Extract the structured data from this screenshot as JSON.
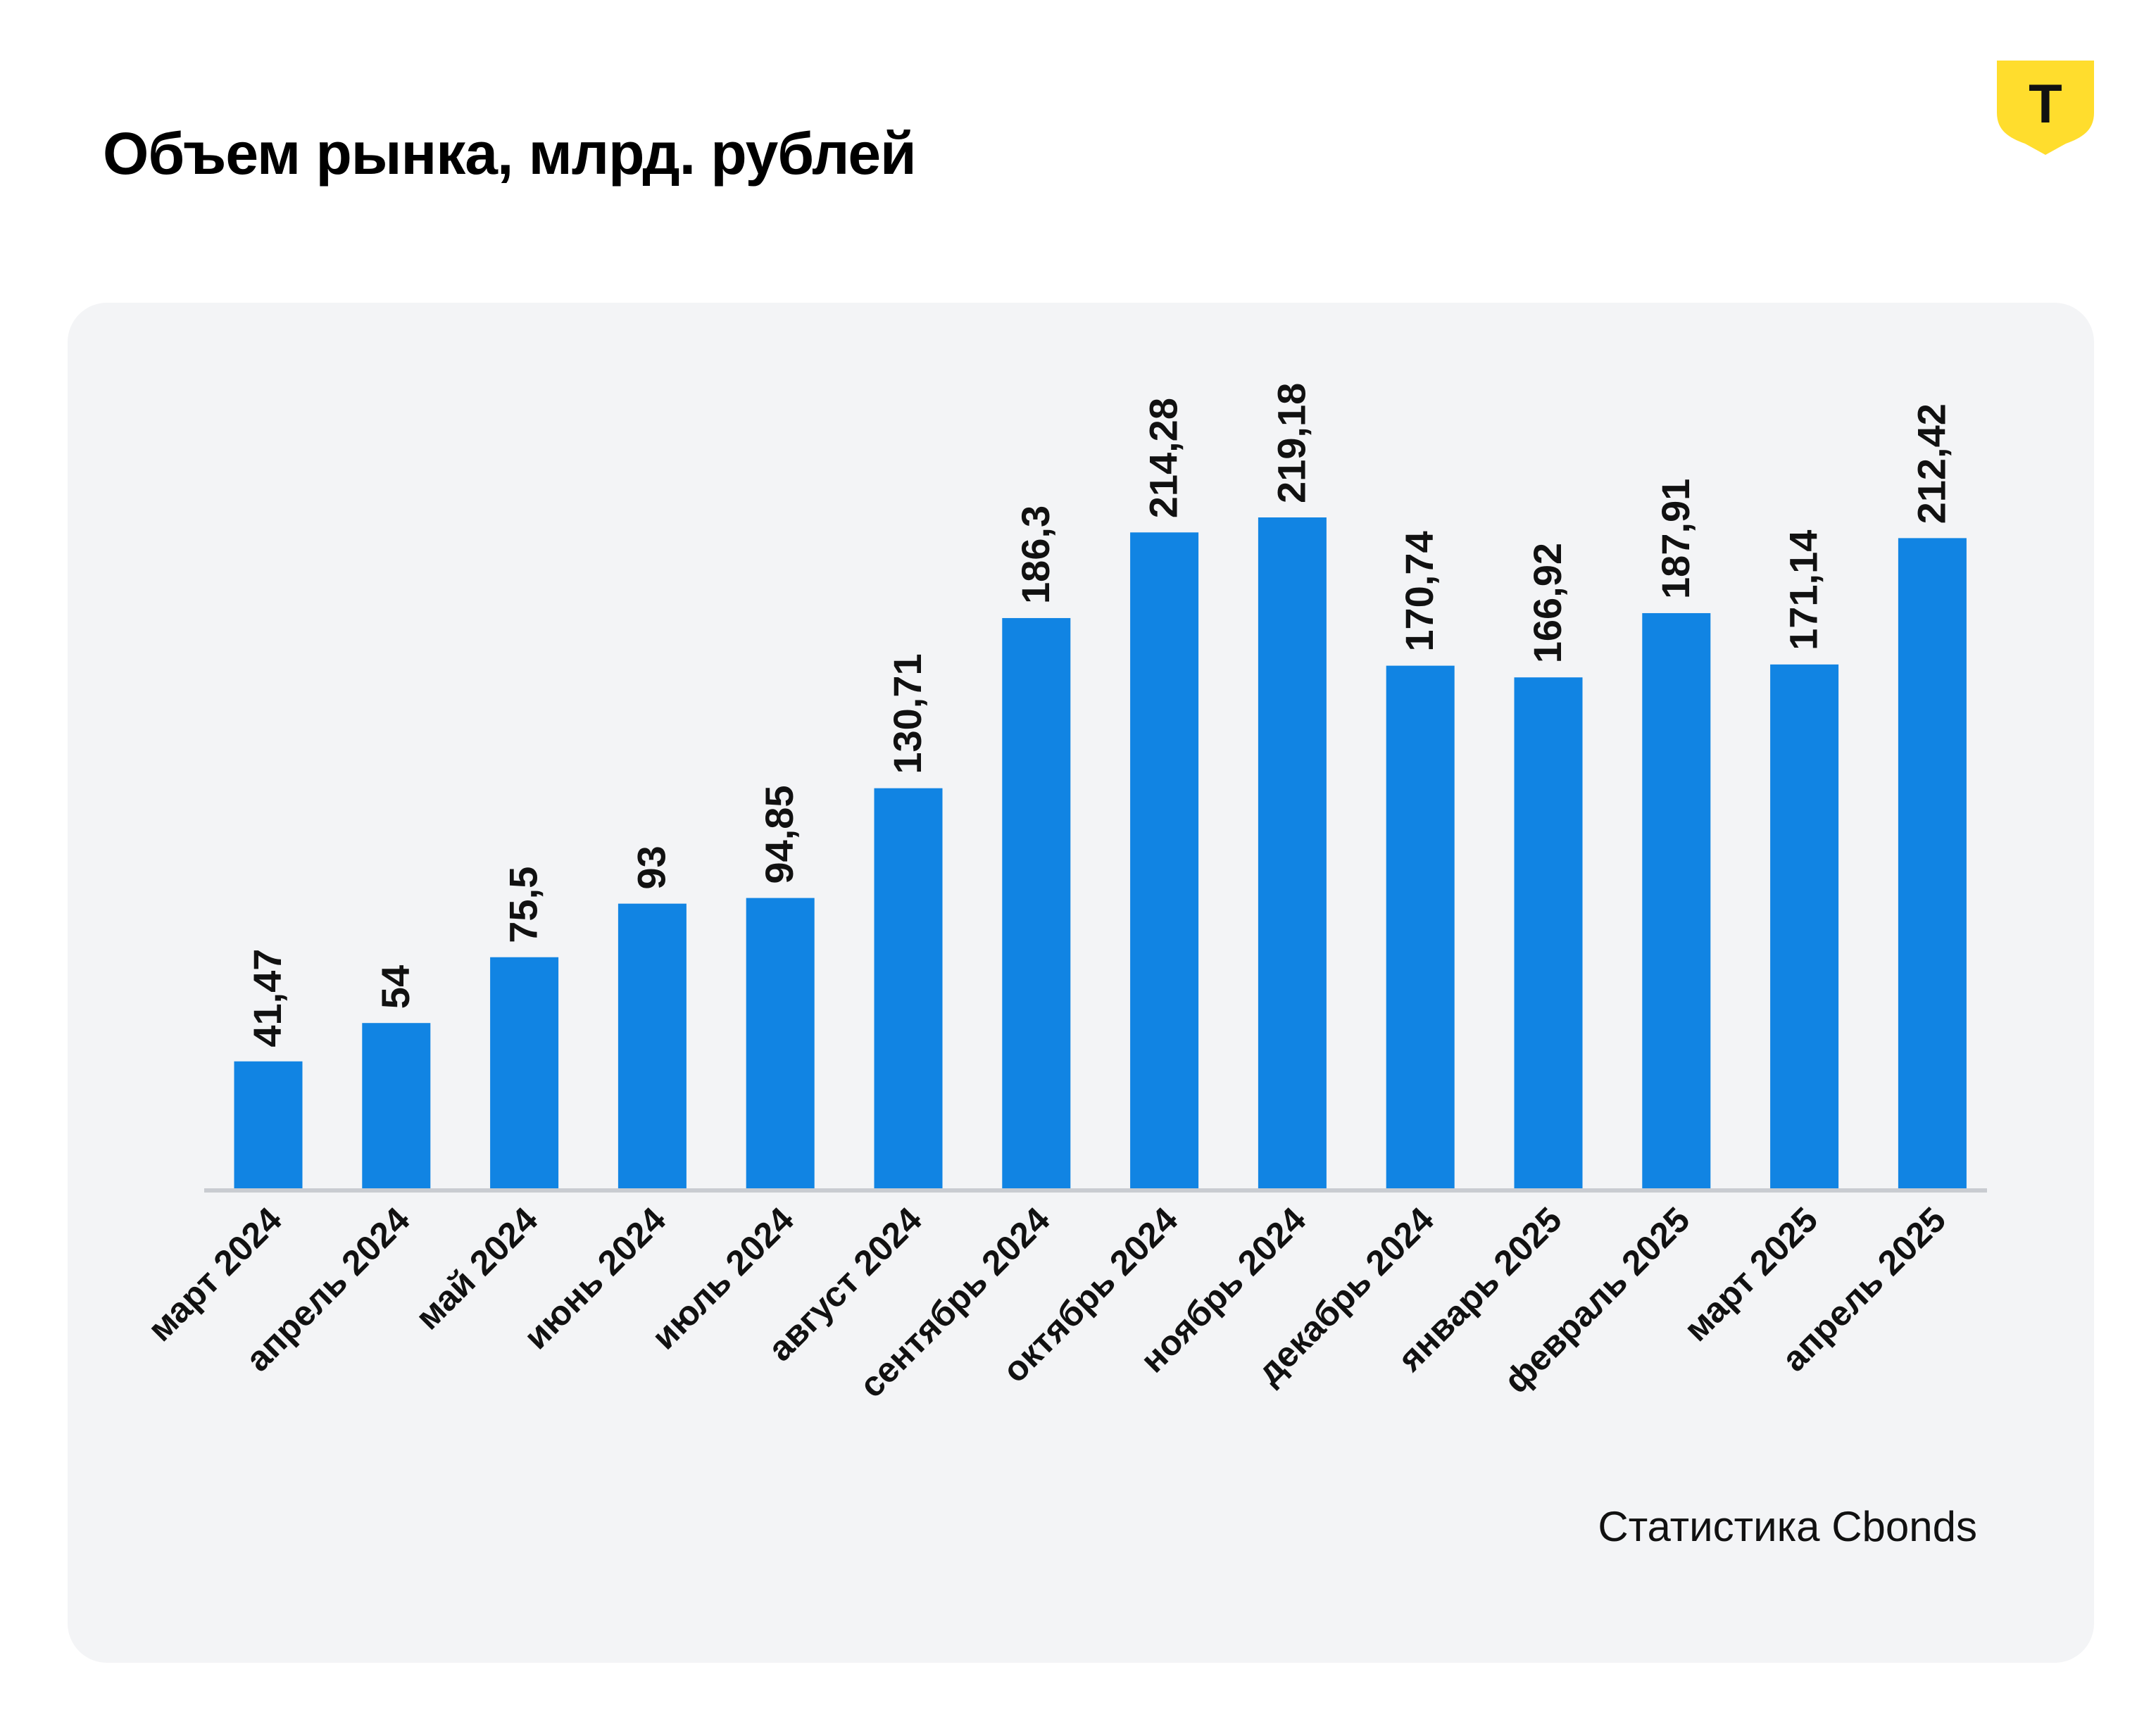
{
  "header": {
    "title": "Объем рынка, млрд. рублей",
    "logo_letter": "Т",
    "logo_icon": "shield-t-logo",
    "logo_color": "#ffdd2d"
  },
  "source_note": "Статистика Cbonds",
  "colors": {
    "bar": "#1184e3",
    "panel_bg": "#f3f4f6",
    "axis": "#c9ccd1",
    "text": "#111111"
  },
  "chart_data": {
    "type": "bar",
    "title": "Объем рынка, млрд. рублей",
    "xlabel": "",
    "ylabel": "",
    "categories": [
      "март 2024",
      "апрель 2024",
      "май 2024",
      "июнь 2024",
      "июль 2024",
      "август 2024",
      "сентябрь 2024",
      "октябрь 2024",
      "ноябрь 2024",
      "декабрь 2024",
      "январь 2025",
      "февраль 2025",
      "март 2025",
      "апрель 2025"
    ],
    "values": [
      41.47,
      54,
      75.5,
      93,
      94.85,
      130.71,
      186.3,
      214.28,
      219.18,
      170.74,
      166.92,
      187.91,
      171.14,
      212.42
    ],
    "value_labels": [
      "41,47",
      "54",
      "75,5",
      "93",
      "94,85",
      "130,71",
      "186,3",
      "214,28",
      "219,18",
      "170,74",
      "166,92",
      "187,91",
      "171,14",
      "212,42"
    ],
    "ylim": [
      0,
      219.18
    ],
    "grid": false,
    "legend": "none"
  }
}
